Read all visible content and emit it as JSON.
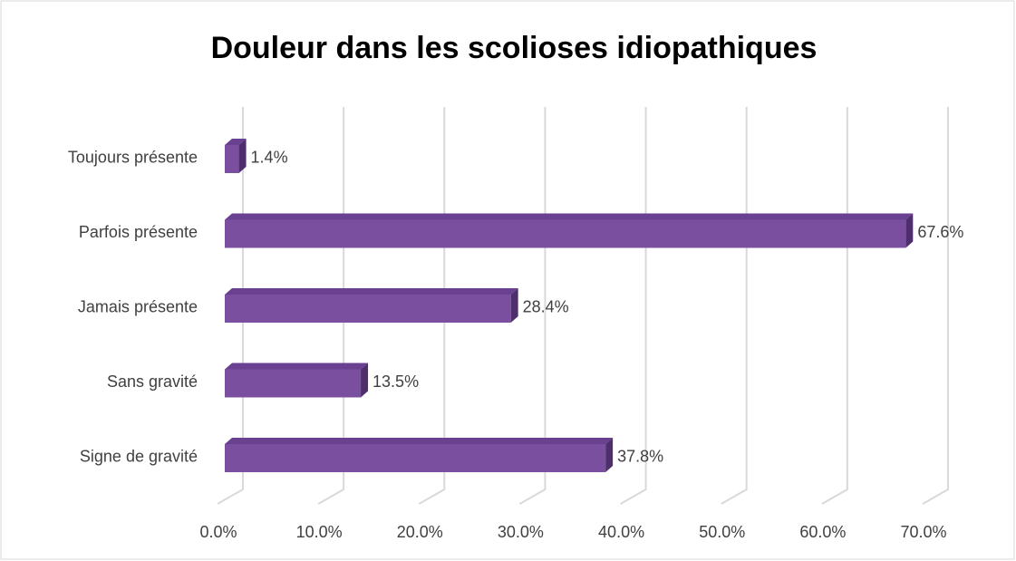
{
  "chart_data": {
    "type": "bar3d-horizontal",
    "title": "Douleur dans les scolioses idiopathiques",
    "categories": [
      "Toujours présente",
      "Parfois présente",
      "Jamais présente",
      "Sans gravité",
      "Signe de gravité"
    ],
    "values": [
      1.4,
      67.6,
      28.4,
      13.5,
      37.8
    ],
    "value_labels": [
      "1.4%",
      "67.6%",
      "28.4%",
      "13.5%",
      "37.8%"
    ],
    "color": "#7b4fa0",
    "xlim": [
      0,
      70
    ],
    "xticks": [
      {
        "value": 0,
        "label": "0.0%"
      },
      {
        "value": 10,
        "label": "10.0%"
      },
      {
        "value": 20,
        "label": "20.0%"
      },
      {
        "value": 30,
        "label": "30.0%"
      },
      {
        "value": 40,
        "label": "40.0%"
      },
      {
        "value": 50,
        "label": "50.0%"
      },
      {
        "value": 60,
        "label": "60.0%"
      },
      {
        "value": 70,
        "label": "70.0%"
      }
    ],
    "grid": true
  }
}
